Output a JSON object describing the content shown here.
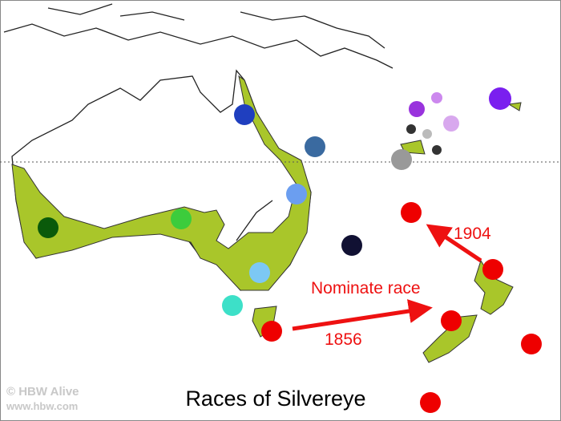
{
  "title": "Races of Silvereye",
  "annotations": {
    "nominate": "Nominate race",
    "year_1856": "1856",
    "year_1904": "1904"
  },
  "credit": {
    "name": "© HBW Alive",
    "url": "www.hbw.com"
  }
}
